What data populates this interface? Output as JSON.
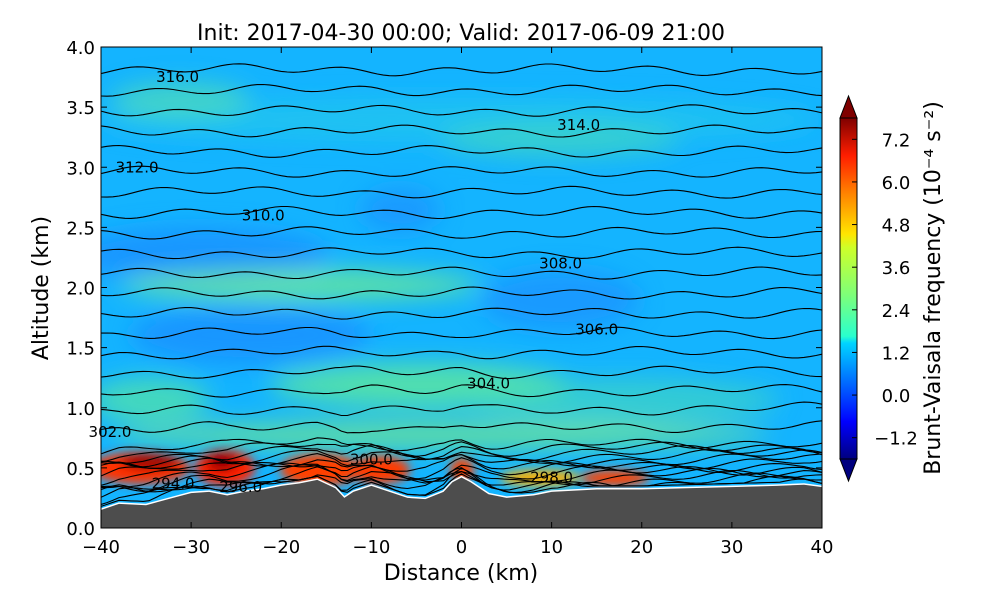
{
  "chart_data": {
    "type": "heatmap",
    "title": "Init: 2017-04-30 00:00; Valid: 2017-06-09 21:00",
    "xlabel": "Distance (km)",
    "ylabel": "Altitude (km)",
    "xlim": [
      -40,
      40
    ],
    "ylim": [
      0.0,
      4.0
    ],
    "x_ticks": [
      -40,
      -30,
      -20,
      -10,
      0,
      10,
      20,
      30,
      40
    ],
    "x_tick_labels": [
      "−40",
      "−30",
      "−20",
      "−10",
      "0",
      "10",
      "20",
      "30",
      "40"
    ],
    "y_ticks": [
      0.0,
      0.5,
      1.0,
      1.5,
      2.0,
      2.5,
      3.0,
      3.5,
      4.0
    ],
    "y_tick_labels": [
      "0.0",
      "0.5",
      "1.0",
      "1.5",
      "2.0",
      "2.5",
      "3.0",
      "3.5",
      "4.0"
    ],
    "colorbar": {
      "label": "Brunt-Vaisala frequency (10⁻⁴ s⁻²)",
      "range": [
        -1.8,
        7.8
      ],
      "ticks": [
        -1.2,
        0.0,
        1.2,
        2.4,
        3.6,
        4.8,
        6.0,
        7.2
      ],
      "tick_labels": [
        "−1.2",
        "0.0",
        "1.2",
        "2.4",
        "3.6",
        "4.8",
        "6.0",
        "7.2"
      ],
      "colormap": "jet",
      "extend": "both"
    },
    "terrain": {
      "color": "#4d4d4d",
      "x": [
        -40,
        -38,
        -35,
        -32,
        -30,
        -28,
        -26,
        -24,
        -22,
        -20,
        -18,
        -16,
        -14,
        -13,
        -12,
        -10,
        -8,
        -6,
        -4,
        -2,
        -1,
        0,
        1,
        3,
        5,
        8,
        10,
        15,
        20,
        25,
        30,
        35,
        38,
        40
      ],
      "y": [
        0.15,
        0.2,
        0.19,
        0.25,
        0.29,
        0.3,
        0.27,
        0.3,
        0.32,
        0.35,
        0.37,
        0.4,
        0.33,
        0.25,
        0.3,
        0.35,
        0.3,
        0.25,
        0.24,
        0.3,
        0.38,
        0.42,
        0.38,
        0.28,
        0.25,
        0.27,
        0.3,
        0.32,
        0.32,
        0.33,
        0.34,
        0.35,
        0.36,
        0.34
      ]
    },
    "contour_labels": [
      {
        "text": "316.0",
        "x": -31.5,
        "y": 3.75
      },
      {
        "text": "314.0",
        "x": 13,
        "y": 3.35
      },
      {
        "text": "312.0",
        "x": -36,
        "y": 3.0
      },
      {
        "text": "310.0",
        "x": -22,
        "y": 2.6
      },
      {
        "text": "308.0",
        "x": 11,
        "y": 2.2
      },
      {
        "text": "306.0",
        "x": 15,
        "y": 1.65
      },
      {
        "text": "304.0",
        "x": 3,
        "y": 1.2
      },
      {
        "text": "302.0",
        "x": -39,
        "y": 0.8
      },
      {
        "text": "300.0",
        "x": -10,
        "y": 0.57
      },
      {
        "text": "298.0",
        "x": 10,
        "y": 0.42
      },
      {
        "text": "296.0",
        "x": -24.5,
        "y": 0.34
      },
      {
        "text": "294.0",
        "x": -32,
        "y": 0.37
      }
    ]
  }
}
